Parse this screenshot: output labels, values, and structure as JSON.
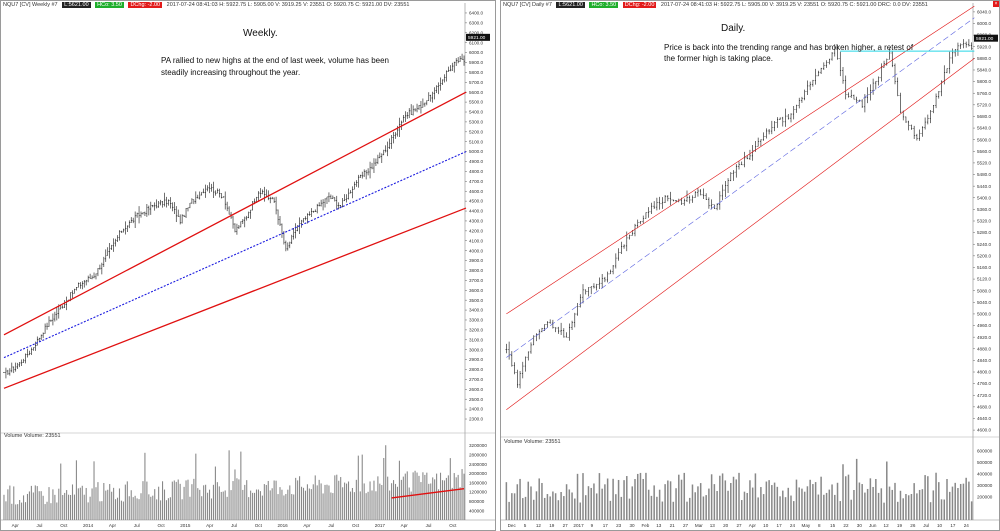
{
  "left": {
    "header": {
      "symbol": "NQU7 [CV]  Weekly  #7",
      "box1": "L:5621.00",
      "box2": "HCo: 3.50",
      "box3": "DChg: -2.00",
      "ohlc": "2017-07-24 08:41:03  H: 5922.75  L: 5905.00  V: 3919.25  V: 23551  O: 5920.75  C: 5921.00  DV: 23551"
    },
    "title": "Weekly.",
    "note": "PA rallied to new highs at the end of last week, volume has been steadily increasing throughout the year.",
    "volume_label": "Volume  Volume: 23551",
    "price_badge": "5921.00",
    "x_labels": [
      "Apr",
      "Jul",
      "Oct",
      "2014",
      "Apr",
      "Jul",
      "Oct",
      "2015",
      "Apr",
      "Jul",
      "Oct",
      "2016",
      "Apr",
      "Jul",
      "Oct",
      "2017",
      "Apr",
      "Jul",
      "Oct"
    ]
  },
  "right": {
    "header": {
      "symbol": "NQU7 [CV]  Daily  #7",
      "box1": "L:5621.00",
      "box2": "HCo: 3.50",
      "box3": "DChg: -2.00",
      "ohlc": "2017-07-24 08:41:03  H: 5922.75  L: 5905.00  V: 3919.25  V: 23551  O: 5920.75  C: 5921.00  DRC: 0.0  DV: 23551"
    },
    "title": "Daily.",
    "note": "Price is back into the trending range and has broken higher, a retest of the former high is taking place.",
    "volume_label": "Volume  Volume: 23551",
    "price_badge": "5921.00",
    "x_labels": [
      "Dec",
      "5",
      "12",
      "19",
      "27",
      "2017",
      "9",
      "17",
      "23",
      "30",
      "Feb",
      "13",
      "21",
      "27",
      "Mar",
      "13",
      "20",
      "27",
      "Apr",
      "10",
      "17",
      "24",
      "May",
      "8",
      "15",
      "22",
      "30",
      "Jun",
      "12",
      "19",
      "26",
      "Jul",
      "10",
      "17",
      "24"
    ]
  },
  "chart_data": [
    {
      "type": "ohlc",
      "timeframe": "Weekly",
      "yticks": [
        2300,
        2400,
        2500,
        2600,
        2700,
        2800,
        2900,
        3000,
        3100,
        3200,
        3300,
        3400,
        3500,
        3600,
        3700,
        3800,
        3900,
        4000,
        4100,
        4200,
        4300,
        4400,
        4500,
        4600,
        4700,
        4800,
        4900,
        5000,
        5100,
        5200,
        5300,
        5400,
        5500,
        5600,
        5700,
        5800,
        5900,
        6000,
        6100,
        6200,
        6300,
        6400
      ],
      "ylim": [
        2280,
        6440
      ],
      "anchors_close": [
        [
          0,
          2750
        ],
        [
          8,
          2860
        ],
        [
          14,
          3000
        ],
        [
          22,
          3250
        ],
        [
          30,
          3450
        ],
        [
          38,
          3650
        ],
        [
          46,
          3750
        ],
        [
          54,
          4000
        ],
        [
          60,
          4200
        ],
        [
          68,
          4350
        ],
        [
          76,
          4450
        ],
        [
          84,
          4500
        ],
        [
          90,
          4300
        ],
        [
          96,
          4500
        ],
        [
          104,
          4650
        ],
        [
          112,
          4550
        ],
        [
          118,
          4200
        ],
        [
          124,
          4350
        ],
        [
          130,
          4600
        ],
        [
          138,
          4500
        ],
        [
          144,
          4000
        ],
        [
          150,
          4250
        ],
        [
          158,
          4400
        ],
        [
          166,
          4550
        ],
        [
          172,
          4450
        ],
        [
          180,
          4700
        ],
        [
          188,
          4850
        ],
        [
          196,
          5050
        ],
        [
          204,
          5350
        ],
        [
          212,
          5450
        ],
        [
          220,
          5600
        ],
        [
          226,
          5800
        ],
        [
          232,
          5920
        ]
      ],
      "bars": 236,
      "channel_upper": [
        [
          0,
          3150
        ],
        [
          236,
          5600
        ]
      ],
      "channel_mid": [
        [
          0,
          2920
        ],
        [
          236,
          5000
        ]
      ],
      "channel_lower": [
        [
          0,
          2610
        ],
        [
          236,
          4430
        ]
      ],
      "vol_ticks": [
        400000,
        800000,
        1200000,
        1600000,
        2000000,
        2400000,
        2800000,
        3200000
      ],
      "vol_max": 3400000,
      "vol_trend": [
        [
          198,
          950000
        ],
        [
          236,
          1350000
        ]
      ]
    },
    {
      "type": "ohlc",
      "timeframe": "Daily",
      "yticks": [
        4600,
        4640,
        4680,
        4720,
        4760,
        4800,
        4840,
        4880,
        4920,
        4960,
        5000,
        5040,
        5080,
        5120,
        5160,
        5200,
        5240,
        5280,
        5320,
        5360,
        5400,
        5440,
        5480,
        5520,
        5560,
        5600,
        5640,
        5680,
        5720,
        5760,
        5800,
        5840,
        5880,
        5920,
        5960,
        6000,
        6040
      ],
      "ylim": [
        4590,
        6050
      ],
      "anchors_close": [
        [
          0,
          4880
        ],
        [
          4,
          4760
        ],
        [
          10,
          4930
        ],
        [
          16,
          4970
        ],
        [
          22,
          4920
        ],
        [
          28,
          5080
        ],
        [
          36,
          5120
        ],
        [
          44,
          5260
        ],
        [
          52,
          5360
        ],
        [
          58,
          5400
        ],
        [
          64,
          5380
        ],
        [
          70,
          5420
        ],
        [
          76,
          5360
        ],
        [
          82,
          5480
        ],
        [
          90,
          5560
        ],
        [
          98,
          5660
        ],
        [
          104,
          5680
        ],
        [
          110,
          5780
        ],
        [
          116,
          5860
        ],
        [
          120,
          5910
        ],
        [
          124,
          5760
        ],
        [
          130,
          5720
        ],
        [
          136,
          5820
        ],
        [
          140,
          5900
        ],
        [
          144,
          5700
        ],
        [
          150,
          5600
        ],
        [
          156,
          5720
        ],
        [
          162,
          5880
        ],
        [
          166,
          5930
        ],
        [
          170,
          5921
        ]
      ],
      "bars": 171,
      "channel_upper": [
        [
          0,
          5000
        ],
        [
          171,
          6060
        ]
      ],
      "channel_mid": [
        [
          0,
          4850
        ],
        [
          171,
          6020
        ]
      ],
      "channel_lower": [
        [
          0,
          4670
        ],
        [
          171,
          5880
        ]
      ],
      "resistance": [
        [
          122,
          5905
        ],
        [
          171,
          5905
        ]
      ],
      "vol_ticks": [
        200000,
        300000,
        400000,
        500000,
        600000
      ],
      "vol_max": 650000
    }
  ]
}
